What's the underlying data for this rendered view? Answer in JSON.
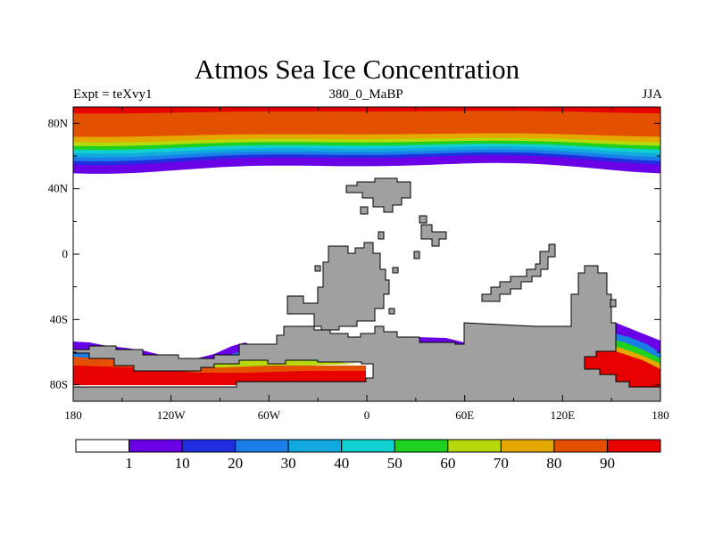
{
  "title": "Atmos Sea Ice Concentration",
  "subtitle_left": "Expt = teXvy1",
  "subtitle_center": "380_0_MaBP",
  "subtitle_right": "JJA",
  "chart_data": {
    "type": "heatmap",
    "title": "Atmos Sea Ice Concentration",
    "variable": "sea ice concentration (%)",
    "x_ticks": [
      "180",
      "120W",
      "60W",
      "0",
      "60E",
      "120E",
      "180"
    ],
    "x_tick_values": [
      -180,
      -120,
      -60,
      0,
      60,
      120,
      180
    ],
    "y_ticks": [
      "80N",
      "40N",
      "0",
      "40S",
      "80S"
    ],
    "y_tick_values": [
      80,
      40,
      0,
      -40,
      -80
    ],
    "xlim": [
      -180,
      180
    ],
    "ylim": [
      -90,
      90
    ],
    "colorbar": {
      "levels": [
        "1",
        "10",
        "20",
        "30",
        "40",
        "50",
        "60",
        "70",
        "80",
        "90"
      ],
      "colors": [
        "#ffffff",
        "#6a00e6",
        "#1f2fe0",
        "#1a7ee8",
        "#12a8e0",
        "#0fcfcf",
        "#1fd11f",
        "#b5d90a",
        "#e6a800",
        "#e35000",
        "#e60000"
      ]
    },
    "land_color": "#a0a0a0",
    "arctic_bands_deg_lat": [
      {
        "value_bin": "1-10",
        "lat_south": 53,
        "lat_north": 58
      },
      {
        "value_bin": "10-20",
        "lat_south": 58,
        "lat_north": 60
      },
      {
        "value_bin": "20-30",
        "lat_south": 60,
        "lat_north": 62
      },
      {
        "value_bin": "30-40",
        "lat_south": 62,
        "lat_north": 64
      },
      {
        "value_bin": "40-50",
        "lat_south": 64,
        "lat_north": 66
      },
      {
        "value_bin": "50-60",
        "lat_south": 66,
        "lat_north": 68
      },
      {
        "value_bin": "60-70",
        "lat_south": 68,
        "lat_north": 70
      },
      {
        "value_bin": "70-80",
        "lat_south": 70,
        "lat_north": 73
      },
      {
        "value_bin": "80-90",
        "lat_south": 73,
        "lat_north": 87
      },
      {
        "value_bin": "90+",
        "lat_south": 87,
        "lat_north": 90
      }
    ]
  }
}
